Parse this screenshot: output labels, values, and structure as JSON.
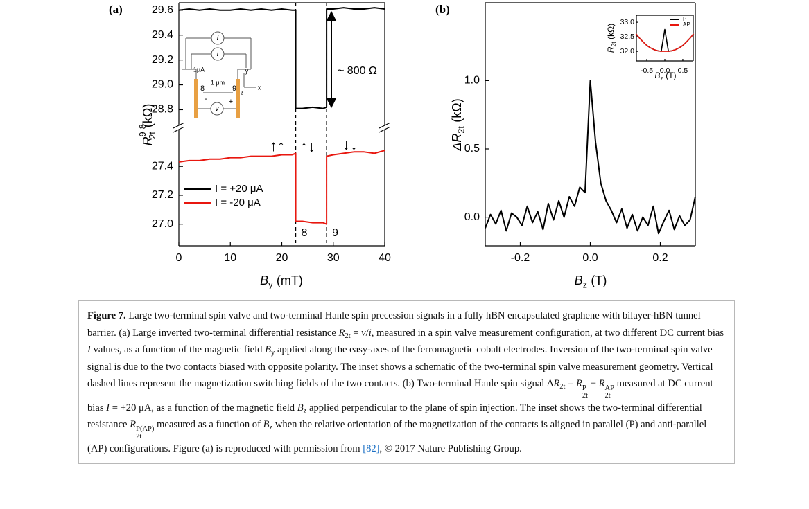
{
  "chart_data": [
    {
      "type": "line",
      "title": "(a)",
      "xlabel": {
        "main": "B",
        "sub": "y",
        "unit": "(mT)"
      },
      "ylabel": {
        "main": "R",
        "sub": "2t",
        "sup": "9-8",
        "unit": "(kΩ)"
      },
      "xlim": [
        0,
        40
      ],
      "xticks": [
        0,
        10,
        20,
        30,
        40
      ],
      "ylim": [
        [
          26.85,
          27.65
        ],
        [
          28.68,
          29.66
        ]
      ],
      "yticks": [
        {
          "value": 27,
          "label": "27.0"
        },
        27.2,
        27.4,
        28.8,
        {
          "value": 29,
          "label": "29.0"
        },
        29.2,
        29.4,
        29.6
      ],
      "legend": "lower left",
      "series": [
        {
          "name": "I = +20 μA",
          "color": "#000000",
          "x": [
            0,
            2,
            4,
            6,
            8,
            10,
            12,
            14,
            16,
            18,
            20,
            22,
            22.7,
            22.7,
            24,
            26,
            28,
            28.7,
            28.7,
            30,
            32,
            34,
            36,
            38,
            40
          ],
          "values": [
            29.6,
            29.61,
            29.6,
            29.61,
            29.6,
            29.6,
            29.61,
            29.6,
            29.61,
            29.6,
            29.61,
            29.6,
            29.6,
            28.81,
            28.81,
            28.82,
            28.81,
            28.82,
            29.61,
            29.61,
            29.62,
            29.61,
            29.61,
            29.62,
            29.61
          ]
        },
        {
          "name": "I = -20 μA",
          "color": "#e8170f",
          "x": [
            0,
            2,
            4,
            6,
            8,
            10,
            12,
            14,
            16,
            18,
            20,
            22,
            22.7,
            22.7,
            24,
            26,
            28,
            28.7,
            28.7,
            30,
            32,
            34,
            36,
            38,
            40
          ],
          "values": [
            27.43,
            27.44,
            27.44,
            27.45,
            27.45,
            27.46,
            27.46,
            27.47,
            27.47,
            27.47,
            27.48,
            27.48,
            27.49,
            27.02,
            27.02,
            27.01,
            27.01,
            27.0,
            27.47,
            27.48,
            27.49,
            27.5,
            27.5,
            27.49,
            27.51
          ]
        }
      ],
      "vlines": [
        22.7,
        28.7
      ],
      "vline_labels": [
        "8",
        "9"
      ],
      "annotations": [
        "↑↑",
        "↑↓",
        "↓↓",
        "~ 800 Ω"
      ],
      "inset_labels": [
        "I",
        "i",
        "1μA",
        "8",
        "9",
        "1 μm",
        "y",
        "x",
        "z",
        "v",
        "-",
        "+"
      ]
    },
    {
      "type": "line",
      "title": "(b)",
      "xlabel": {
        "main": "B",
        "sub": "z",
        "unit": "(T)"
      },
      "ylabel": {
        "main": "ΔR",
        "sub": "2t",
        "unit": "(kΩ)"
      },
      "xlim": [
        -0.3,
        0.3
      ],
      "xticks": [
        -0.2,
        {
          "value": 0,
          "label": "0.0"
        },
        0.2
      ],
      "ylim": [
        -0.21,
        1.57
      ],
      "yticks": [
        {
          "value": 0,
          "label": "0.0"
        },
        0.5,
        {
          "value": 1,
          "label": "1.0"
        }
      ],
      "series": [
        {
          "color": "#000000",
          "x": [
            -0.3,
            -0.285,
            -0.27,
            -0.255,
            -0.24,
            -0.225,
            -0.21,
            -0.195,
            -0.18,
            -0.165,
            -0.15,
            -0.135,
            -0.12,
            -0.105,
            -0.09,
            -0.075,
            -0.06,
            -0.045,
            -0.03,
            -0.015,
            0,
            0.015,
            0.03,
            0.045,
            0.06,
            0.075,
            0.09,
            0.105,
            0.12,
            0.135,
            0.15,
            0.165,
            0.18,
            0.195,
            0.21,
            0.225,
            0.24,
            0.255,
            0.27,
            0.285,
            0.3
          ],
          "values": [
            -0.08,
            0.02,
            -0.05,
            0.05,
            -0.1,
            0.03,
            0.0,
            -0.06,
            0.08,
            -0.04,
            0.04,
            -0.09,
            0.1,
            -0.02,
            0.12,
            0.0,
            0.15,
            0.08,
            0.22,
            0.18,
            1.0,
            0.55,
            0.25,
            0.12,
            0.05,
            -0.04,
            0.06,
            -0.08,
            0.02,
            -0.1,
            0.0,
            -0.06,
            0.08,
            -0.12,
            -0.03,
            0.05,
            -0.09,
            0.01,
            -0.06,
            -0.02,
            0.15
          ]
        }
      ]
    },
    {
      "type": "line",
      "xlabel": {
        "main": "B",
        "sub": "z",
        "unit": "(T)"
      },
      "ylabel": {
        "main": "R",
        "sub": "2t",
        "unit": "(kΩ)"
      },
      "xlim": [
        -0.79,
        0.79
      ],
      "xticks": [
        -0.5,
        {
          "value": 0,
          "label": "0.0"
        },
        0.5
      ],
      "ylim": [
        31.67,
        33.24
      ],
      "yticks": [
        {
          "value": 32,
          "label": "32.0"
        },
        32.5,
        {
          "value": 33,
          "label": "33.0"
        }
      ],
      "legend": "upper right",
      "series": [
        {
          "name": "P",
          "color": "#000000",
          "x": [
            -0.8,
            -0.7,
            -0.6,
            -0.5,
            -0.4,
            -0.3,
            -0.2,
            -0.1,
            0,
            0.1,
            0.2,
            0.3,
            0.4,
            0.5,
            0.6,
            0.7,
            0.8
          ],
          "values": [
            32.6,
            32.45,
            32.32,
            32.2,
            32.12,
            32.06,
            32.02,
            32.0,
            32.75,
            32.0,
            32.02,
            32.06,
            32.12,
            32.2,
            32.32,
            32.45,
            32.6
          ]
        },
        {
          "name": "AP",
          "color": "#e8170f",
          "x": [
            -0.8,
            -0.7,
            -0.6,
            -0.5,
            -0.4,
            -0.3,
            -0.2,
            -0.1,
            0,
            0.1,
            0.2,
            0.3,
            0.4,
            0.5,
            0.6,
            0.7,
            0.8
          ],
          "values": [
            32.6,
            32.45,
            32.32,
            32.2,
            32.12,
            32.06,
            32.02,
            32.0,
            32.0,
            32.0,
            32.02,
            32.06,
            32.12,
            32.2,
            32.32,
            32.45,
            32.6
          ]
        }
      ]
    }
  ],
  "caption": [
    {
      "text": "Figure 7.",
      "style": "b"
    },
    "  Large two-terminal spin valve and two-terminal Hanle spin precession signals in a fully hBN encapsulated graphene with bilayer-hBN tunnel barrier. (a) Large inverted two-terminal differential resistance ",
    {
      "text": "R",
      "style": "i"
    },
    {
      "text": "2t",
      "style": "sub"
    },
    " = ",
    {
      "text": "v",
      "style": "i"
    },
    "/",
    {
      "text": "i",
      "style": "i"
    },
    ", measured in a spin valve measurement configuration, at two different DC current bias ",
    {
      "text": "I",
      "style": "i"
    },
    " values, as a function of the magnetic field ",
    {
      "text": "B",
      "style": "i"
    },
    {
      "text": "y",
      "style": "sub"
    },
    " applied along the easy-axes of the ferromagnetic cobalt electrodes. Inversion of the two-terminal spin valve signal is due to the two contacts biased with opposite polarity. The inset shows a schematic of the two-terminal spin valve measurement geometry. Vertical dashed lines represent the magnetization switching fields of the two contacts. (b) Two-terminal Hanle spin signal Δ",
    {
      "text": "R",
      "style": "i"
    },
    {
      "text": "2t",
      "style": "sub"
    },
    " = ",
    {
      "text": "R",
      "style": "i"
    },
    {
      "sup": "P",
      "sub": "2t"
    },
    " − ",
    {
      "text": "R",
      "style": "i"
    },
    {
      "sup": "AP",
      "sub": "2t"
    },
    " measured at DC current bias ",
    {
      "text": "I",
      "style": "i"
    },
    " = +20  μA, as a function of the magnetic field ",
    {
      "text": "B",
      "style": "i"
    },
    {
      "text": "z",
      "style": "sub"
    },
    " applied perpendicular to the plane of spin injection. The inset shows the two-terminal differential resistance ",
    {
      "text": "R",
      "style": "i"
    },
    {
      "sup": "P(AP)",
      "sub": "2t"
    },
    " measured as a function of ",
    {
      "text": "B",
      "style": "i"
    },
    {
      "text": "z",
      "style": "sub"
    },
    " when the relative orientation of the magnetization of the contacts is aligned in parallel (P) and anti-parallel (AP) configurations. Figure (a) is reproduced with permission from ",
    {
      "text": "[82]",
      "style": "link"
    },
    ", © 2017 Nature Publishing Group."
  ]
}
